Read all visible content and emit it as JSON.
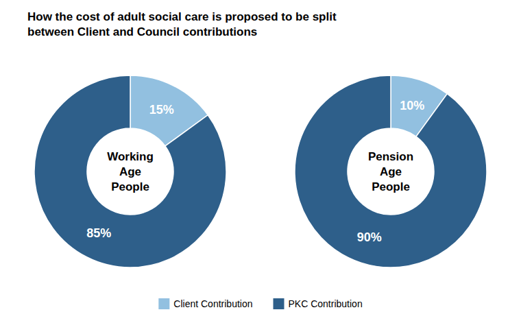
{
  "chart_data": [
    {
      "type": "pie",
      "title": "How the cost of adult social care is proposed to be split\nbetween Client and Council contributions",
      "annotations": [
        "Working\nAge\nPeople"
      ],
      "categories": [
        "Client Contribution",
        "PKC Contribution"
      ],
      "values": [
        15,
        85
      ],
      "value_labels": [
        "15%",
        "85%"
      ],
      "colors": [
        "#92c0e0",
        "#2e5f8a"
      ],
      "data_labels": true,
      "legend": "bottom"
    },
    {
      "type": "pie",
      "annotations": [
        "Pension\nAge\nPeople"
      ],
      "values": [
        10,
        90
      ],
      "value_labels": [
        "10%",
        "90%"
      ],
      "colors": [
        "#92c0e0",
        "#2e5f8a"
      ],
      "data_labels": true
    }
  ]
}
